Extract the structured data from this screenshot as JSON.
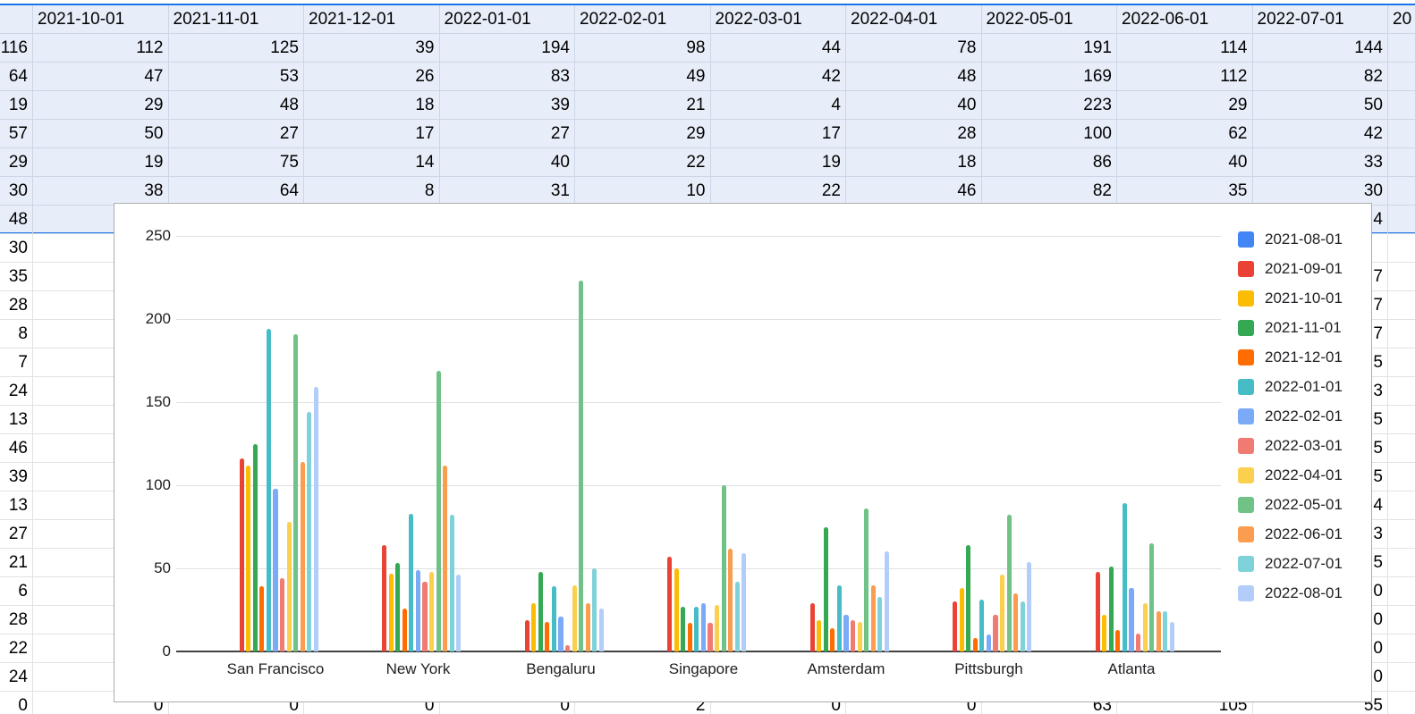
{
  "sheet": {
    "column_headers": [
      "2021-10-01",
      "2021-11-01",
      "2021-12-01",
      "2022-01-01",
      "2022-02-01",
      "2022-03-01",
      "2022-04-01",
      "2022-05-01",
      "2022-06-01",
      "2022-07-01"
    ],
    "partial_column_header": "20",
    "first_column_values": [
      "116",
      "64",
      "19",
      "57",
      "29",
      "30",
      "48",
      "30",
      "35",
      "28",
      "8",
      "7",
      "24",
      "13",
      "46",
      "39",
      "13",
      "27",
      "21",
      "6",
      "28",
      "22",
      "24",
      "0"
    ],
    "visible_rows": [
      [
        "112",
        "125",
        "39",
        "194",
        "98",
        "44",
        "78",
        "191",
        "114",
        "144"
      ],
      [
        "47",
        "53",
        "26",
        "83",
        "49",
        "42",
        "48",
        "169",
        "112",
        "82"
      ],
      [
        "29",
        "48",
        "18",
        "39",
        "21",
        "4",
        "40",
        "223",
        "29",
        "50"
      ],
      [
        "50",
        "27",
        "17",
        "27",
        "29",
        "17",
        "28",
        "100",
        "62",
        "42"
      ],
      [
        "19",
        "75",
        "14",
        "40",
        "22",
        "19",
        "18",
        "86",
        "40",
        "33"
      ],
      [
        "38",
        "64",
        "8",
        "31",
        "10",
        "22",
        "46",
        "82",
        "35",
        "30"
      ]
    ],
    "bottom_row_values": [
      "0",
      "0",
      "0",
      "0",
      "2",
      "0",
      "0",
      "63",
      "105",
      "55"
    ],
    "clipped_last_digits": [
      {
        "row": 7,
        "digit": "4"
      },
      {
        "row": 9,
        "digit": "7"
      },
      {
        "row": 10,
        "digit": "7"
      },
      {
        "row": 11,
        "digit": "7"
      },
      {
        "row": 12,
        "digit": "5"
      },
      {
        "row": 13,
        "digit": "3"
      },
      {
        "row": 14,
        "digit": "5"
      },
      {
        "row": 15,
        "digit": "5"
      },
      {
        "row": 16,
        "digit": "5"
      },
      {
        "row": 17,
        "digit": "4"
      },
      {
        "row": 18,
        "digit": "3"
      },
      {
        "row": 19,
        "digit": "5"
      },
      {
        "row": 20,
        "digit": "0"
      },
      {
        "row": 21,
        "digit": "0"
      },
      {
        "row": 22,
        "digit": "0"
      },
      {
        "row": 23,
        "digit": "0"
      }
    ],
    "colors": {
      "selection_bg": "#e8eef9",
      "selection_border": "#1a73e8",
      "grid_blue": "#ccd6e6",
      "grid_gray": "#e2e2e2",
      "text": "#000000"
    }
  },
  "chart_data": {
    "type": "bar",
    "title": "",
    "categories": [
      "San Francisco",
      "New York",
      "Bengaluru",
      "Singapore",
      "Amsterdam",
      "Pittsburgh",
      "Atlanta"
    ],
    "series": [
      {
        "name": "2021-08-01",
        "color": "#4285f4",
        "values": [
          0,
          0,
          0,
          0,
          0,
          0,
          0
        ]
      },
      {
        "name": "2021-09-01",
        "color": "#ea4335",
        "values": [
          116,
          64,
          19,
          57,
          29,
          30,
          48
        ]
      },
      {
        "name": "2021-10-01",
        "color": "#fbbc04",
        "values": [
          112,
          47,
          29,
          50,
          19,
          38,
          22
        ]
      },
      {
        "name": "2021-11-01",
        "color": "#34a853",
        "values": [
          125,
          53,
          48,
          27,
          75,
          64,
          51
        ]
      },
      {
        "name": "2021-12-01",
        "color": "#ff6d01",
        "values": [
          39,
          26,
          18,
          17,
          14,
          8,
          13
        ]
      },
      {
        "name": "2022-01-01",
        "color": "#46bdc6",
        "values": [
          194,
          83,
          39,
          27,
          40,
          31,
          89
        ]
      },
      {
        "name": "2022-02-01",
        "color": "#7baaf7",
        "values": [
          98,
          49,
          21,
          29,
          22,
          10,
          38
        ]
      },
      {
        "name": "2022-03-01",
        "color": "#f07b72",
        "values": [
          44,
          42,
          4,
          17,
          19,
          22,
          11
        ]
      },
      {
        "name": "2022-04-01",
        "color": "#fcd04f",
        "values": [
          78,
          48,
          40,
          28,
          18,
          46,
          29
        ]
      },
      {
        "name": "2022-05-01",
        "color": "#71c287",
        "values": [
          191,
          169,
          223,
          100,
          86,
          82,
          65
        ]
      },
      {
        "name": "2022-06-01",
        "color": "#fa9d4e",
        "values": [
          114,
          112,
          29,
          62,
          40,
          35,
          24
        ]
      },
      {
        "name": "2022-07-01",
        "color": "#7fd2d9",
        "values": [
          144,
          82,
          50,
          42,
          33,
          30,
          24
        ]
      },
      {
        "name": "2022-08-01",
        "color": "#b3cdfb",
        "values": [
          159,
          46,
          26,
          59,
          60,
          54,
          18
        ]
      }
    ],
    "y_ticks": [
      "0",
      "50",
      "100",
      "150",
      "200",
      "250"
    ],
    "ylim": [
      0,
      250
    ],
    "grid": true,
    "legend_position": "right",
    "axis_color": "#424242",
    "gridline_color": "#e0e0e0"
  }
}
